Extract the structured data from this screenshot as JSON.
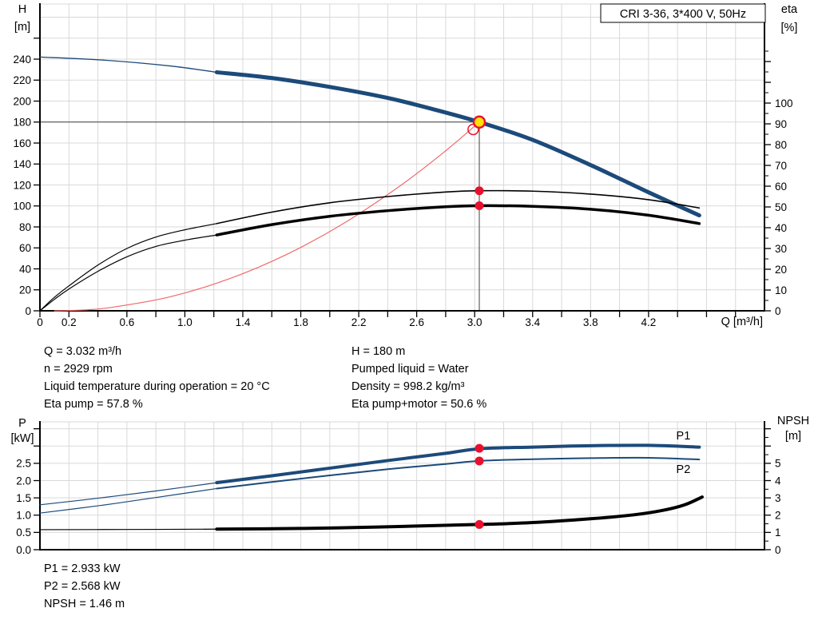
{
  "colors": {
    "curve_blue": "#1c4a7a",
    "label_blue": "#2a5da8",
    "marker_red": "#e8112d",
    "duty_yellow": "#ffe10a",
    "system_red": "#ef6a6a",
    "grid": "#d9d9d9",
    "guide": "#3f3f3f"
  },
  "info_top_left": [
    "Q = 3.032 m³/h",
    "n = 2929 rpm",
    "Liquid temperature during operation = 20 °C",
    "Eta pump = 57.8 %"
  ],
  "info_top_right": [
    "H = 180 m",
    "Pumped liquid = Water",
    "Density = 998.2 kg/m³",
    "Eta pump+motor = 50.6 %"
  ],
  "info_bottom": [
    "P1 = 2.933 kW",
    "P2 = 2.568 kW",
    "NPSH = 1.46 m"
  ],
  "chart_data": [
    {
      "type": "line",
      "title": "CRI 3-36, 3*400 V, 50Hz",
      "x_axis": {
        "title": "Q [m³/h]",
        "min": 0,
        "max": 5.0,
        "tick": 0.2,
        "tick_to": 4.8,
        "labels": [
          [
            0,
            "0"
          ],
          [
            0.2,
            "0.2"
          ],
          [
            0.6,
            "0.6"
          ],
          [
            1,
            "1.0"
          ],
          [
            1.4,
            "1.4"
          ],
          [
            1.8,
            "1.8"
          ],
          [
            2.2,
            "2.2"
          ],
          [
            2.6,
            "2.6"
          ],
          [
            3,
            "3.0"
          ],
          [
            3.4,
            "3.4"
          ],
          [
            3.8,
            "3.8"
          ],
          [
            4.2,
            "4.2"
          ]
        ]
      },
      "y_left": {
        "title": [
          "H",
          "[m]"
        ],
        "min": 0,
        "max": 292.6,
        "tick": 20,
        "tick_to": 260,
        "grid_to": 280,
        "labels": [
          [
            0,
            "0"
          ],
          [
            20,
            "20"
          ],
          [
            40,
            "40"
          ],
          [
            60,
            "60"
          ],
          [
            80,
            "80"
          ],
          [
            100,
            "100"
          ],
          [
            120,
            "120"
          ],
          [
            140,
            "140"
          ],
          [
            160,
            "160"
          ],
          [
            180,
            "180"
          ],
          [
            200,
            "200"
          ],
          [
            220,
            "220"
          ],
          [
            240,
            "240"
          ]
        ]
      },
      "y_right": {
        "title": [
          "eta",
          "[%]"
        ],
        "min": 0,
        "max": 147.7,
        "tick": 10,
        "tick_to": 120,
        "minor": 5,
        "minor_to": 125,
        "labels": [
          [
            0,
            "0"
          ],
          [
            10,
            "10"
          ],
          [
            20,
            "20"
          ],
          [
            30,
            "30"
          ],
          [
            40,
            "40"
          ],
          [
            50,
            "50"
          ],
          [
            60,
            "60"
          ],
          [
            70,
            "70"
          ],
          [
            80,
            "80"
          ],
          [
            90,
            "90"
          ],
          [
            100,
            "100"
          ]
        ]
      },
      "series": [
        {
          "name": "head-curve-extension",
          "axis": "left",
          "color": "#1c4a7a",
          "width": 1.3,
          "points": [
            [
              0,
              242
            ],
            [
              0.45,
              239
            ],
            [
              0.9,
              233.5
            ],
            [
              1.22,
              227.5
            ]
          ]
        },
        {
          "name": "head-curve",
          "axis": "left",
          "color": "#1c4a7a",
          "width": 5,
          "points": [
            [
              1.22,
              227.5
            ],
            [
              1.6,
              222
            ],
            [
              2.0,
              213.5
            ],
            [
              2.4,
              203
            ],
            [
              2.72,
              192
            ],
            [
              3.032,
              180
            ],
            [
              3.4,
              163
            ],
            [
              3.8,
              139
            ],
            [
              4.2,
              113
            ],
            [
              4.55,
              91
            ]
          ]
        },
        {
          "name": "system-curve",
          "axis": "left",
          "color": "#ef6a6a",
          "width": 1.2,
          "points": [
            [
              0.1,
              0
            ],
            [
              0.3,
              0.8
            ],
            [
              0.5,
              3.4
            ],
            [
              0.9,
              13.4
            ],
            [
              1.3,
              30.2
            ],
            [
              1.7,
              53.6
            ],
            [
              2.1,
              83.7
            ],
            [
              2.5,
              120.6
            ],
            [
              2.8,
              152.6
            ],
            [
              3.032,
              180
            ]
          ]
        },
        {
          "name": "eta-pump-curve-extension",
          "axis": "right",
          "color": "#000000",
          "width": 1.2,
          "points": [
            [
              0,
              0
            ],
            [
              0.1,
              6.5
            ],
            [
              0.2,
              12
            ],
            [
              0.4,
              22
            ],
            [
              0.6,
              30
            ],
            [
              0.8,
              35.5
            ],
            [
              1.0,
              39
            ],
            [
              1.22,
              42
            ]
          ]
        },
        {
          "name": "eta-pump-curve",
          "axis": "right",
          "color": "#000000",
          "width": 1.6,
          "points": [
            [
              1.22,
              42
            ],
            [
              1.6,
              47.5
            ],
            [
              2.0,
              52
            ],
            [
              2.4,
              55
            ],
            [
              2.8,
              57.2
            ],
            [
              3.032,
              57.8
            ],
            [
              3.4,
              57.6
            ],
            [
              3.8,
              56.2
            ],
            [
              4.2,
              53.5
            ],
            [
              4.55,
              49.5
            ]
          ]
        },
        {
          "name": "eta-pump-motor-curve-extension",
          "axis": "right",
          "color": "#000000",
          "width": 1.2,
          "points": [
            [
              0,
              0
            ],
            [
              0.1,
              5.5
            ],
            [
              0.2,
              10.5
            ],
            [
              0.4,
              19
            ],
            [
              0.6,
              26
            ],
            [
              0.8,
              31
            ],
            [
              1.0,
              34
            ],
            [
              1.22,
              36.5
            ]
          ]
        },
        {
          "name": "eta-pump-motor-curve",
          "axis": "right",
          "color": "#000000",
          "width": 3.5,
          "points": [
            [
              1.22,
              36.5
            ],
            [
              1.6,
              41.5
            ],
            [
              2.0,
              45.5
            ],
            [
              2.4,
              48.2
            ],
            [
              2.8,
              50.1
            ],
            [
              3.032,
              50.6
            ],
            [
              3.4,
              50.3
            ],
            [
              3.8,
              48.9
            ],
            [
              4.2,
              46
            ],
            [
              4.55,
              42
            ]
          ]
        }
      ],
      "guides": [
        {
          "name": "duty-head-line",
          "axis": "left",
          "color": "#3f3f3f",
          "width": 1,
          "points": [
            [
              0,
              180
            ],
            [
              3.032,
              180
            ]
          ]
        },
        {
          "name": "duty-flow-line",
          "axis": "left",
          "color": "#3f3f3f",
          "width": 1,
          "points": [
            [
              3.032,
              0
            ],
            [
              3.032,
              180
            ]
          ]
        }
      ],
      "markers": [
        {
          "name": "requested-duty-point",
          "type": "open",
          "axis": "left",
          "q": 2.99,
          "v": 173,
          "stroke": "#e8112d",
          "r": 6.5
        },
        {
          "name": "duty-point",
          "type": "duty",
          "axis": "left",
          "q": 3.032,
          "v": 180,
          "fill": "#ffe10a",
          "stroke": "#e8112d",
          "r": 7
        },
        {
          "name": "eta-pump-duty-dot",
          "type": "dot",
          "axis": "right",
          "q": 3.032,
          "v": 57.8,
          "fill": "#e8112d",
          "r": 5.5
        },
        {
          "name": "eta-pump-motor-duty-dot",
          "type": "dot",
          "axis": "right",
          "q": 3.032,
          "v": 50.6,
          "fill": "#e8112d",
          "r": 5.5
        }
      ],
      "labels": []
    },
    {
      "type": "line",
      "x_axis": {
        "min": 0,
        "max": 5.0,
        "tick": 0.2,
        "tick_to": 4.8,
        "labels": []
      },
      "y_left": {
        "title": [
          "P",
          "[kW]"
        ],
        "min": 0,
        "max": 3.7,
        "tick": 0.5,
        "tick_to": 3.5,
        "grid_to": 3.5,
        "labels": [
          [
            0,
            "0.0"
          ],
          [
            0.5,
            "0.5"
          ],
          [
            1,
            "1.0"
          ],
          [
            1.5,
            "1.5"
          ],
          [
            2,
            "2.0"
          ],
          [
            2.5,
            "2.5"
          ]
        ]
      },
      "y_right": {
        "title": [
          "NPSH",
          "[m]"
        ],
        "min": 0,
        "max": 7.4,
        "tick": 1,
        "tick_to": 7,
        "minor": 0.5,
        "minor_to": 7,
        "labels": [
          [
            0,
            "0"
          ],
          [
            1,
            "1"
          ],
          [
            2,
            "2"
          ],
          [
            3,
            "3"
          ],
          [
            4,
            "4"
          ],
          [
            5,
            "5"
          ]
        ]
      },
      "series": [
        {
          "name": "p1-curve-extension",
          "axis": "left",
          "color": "#1c4a7a",
          "width": 1.2,
          "points": [
            [
              0,
              1.3
            ],
            [
              0.4,
              1.49
            ],
            [
              0.8,
              1.7
            ],
            [
              1.22,
              1.94
            ]
          ]
        },
        {
          "name": "p1-curve",
          "axis": "left",
          "color": "#1c4a7a",
          "width": 4,
          "points": [
            [
              1.22,
              1.94
            ],
            [
              1.6,
              2.14
            ],
            [
              2.0,
              2.36
            ],
            [
              2.4,
              2.58
            ],
            [
              2.8,
              2.79
            ],
            [
              3.032,
              2.92
            ],
            [
              3.4,
              2.97
            ],
            [
              3.8,
              3.01
            ],
            [
              4.2,
              3.02
            ],
            [
              4.55,
              2.97
            ]
          ]
        },
        {
          "name": "p2-curve-extension",
          "axis": "left",
          "color": "#1c4a7a",
          "width": 1.2,
          "points": [
            [
              0,
              1.06
            ],
            [
              0.4,
              1.27
            ],
            [
              0.8,
              1.51
            ],
            [
              1.22,
              1.77
            ]
          ]
        },
        {
          "name": "p2-curve",
          "axis": "left",
          "color": "#1c4a7a",
          "width": 2,
          "points": [
            [
              1.22,
              1.77
            ],
            [
              1.6,
              1.96
            ],
            [
              2.0,
              2.15
            ],
            [
              2.4,
              2.33
            ],
            [
              2.8,
              2.48
            ],
            [
              3.032,
              2.57
            ],
            [
              3.4,
              2.62
            ],
            [
              3.8,
              2.65
            ],
            [
              4.2,
              2.66
            ],
            [
              4.55,
              2.61
            ]
          ]
        },
        {
          "name": "npsh-curve-extension",
          "axis": "right",
          "color": "#000000",
          "width": 1.2,
          "points": [
            [
              0,
              1.16
            ],
            [
              0.6,
              1.17
            ],
            [
              1.22,
              1.19
            ]
          ]
        },
        {
          "name": "npsh-curve",
          "axis": "right",
          "color": "#000000",
          "width": 4,
          "points": [
            [
              1.22,
              1.19
            ],
            [
              1.8,
              1.23
            ],
            [
              2.2,
              1.29
            ],
            [
              2.6,
              1.37
            ],
            [
              3.032,
              1.46
            ],
            [
              3.4,
              1.57
            ],
            [
              3.8,
              1.79
            ],
            [
              4.1,
              2.02
            ],
            [
              4.3,
              2.28
            ],
            [
              4.45,
              2.6
            ],
            [
              4.57,
              3.05
            ]
          ]
        }
      ],
      "guides": [],
      "markers": [
        {
          "name": "p1-duty-dot",
          "type": "dot",
          "axis": "left",
          "q": 3.032,
          "v": 2.933,
          "fill": "#e8112d",
          "r": 5.5
        },
        {
          "name": "p2-duty-dot",
          "type": "dot",
          "axis": "left",
          "q": 3.032,
          "v": 2.568,
          "fill": "#e8112d",
          "r": 5.5
        },
        {
          "name": "npsh-duty-dot",
          "type": "dot",
          "axis": "right",
          "q": 3.032,
          "v": 1.46,
          "fill": "#e8112d",
          "r": 5.5
        }
      ],
      "labels": [
        {
          "name": "p1-curve-label",
          "text": "P1",
          "axis": "left",
          "q": 4.44,
          "v": 3.19,
          "color": "#2a5da8"
        },
        {
          "name": "p2-curve-label",
          "text": "P2",
          "axis": "left",
          "q": 4.44,
          "v": 2.22,
          "color": "#2a5da8"
        }
      ]
    }
  ]
}
